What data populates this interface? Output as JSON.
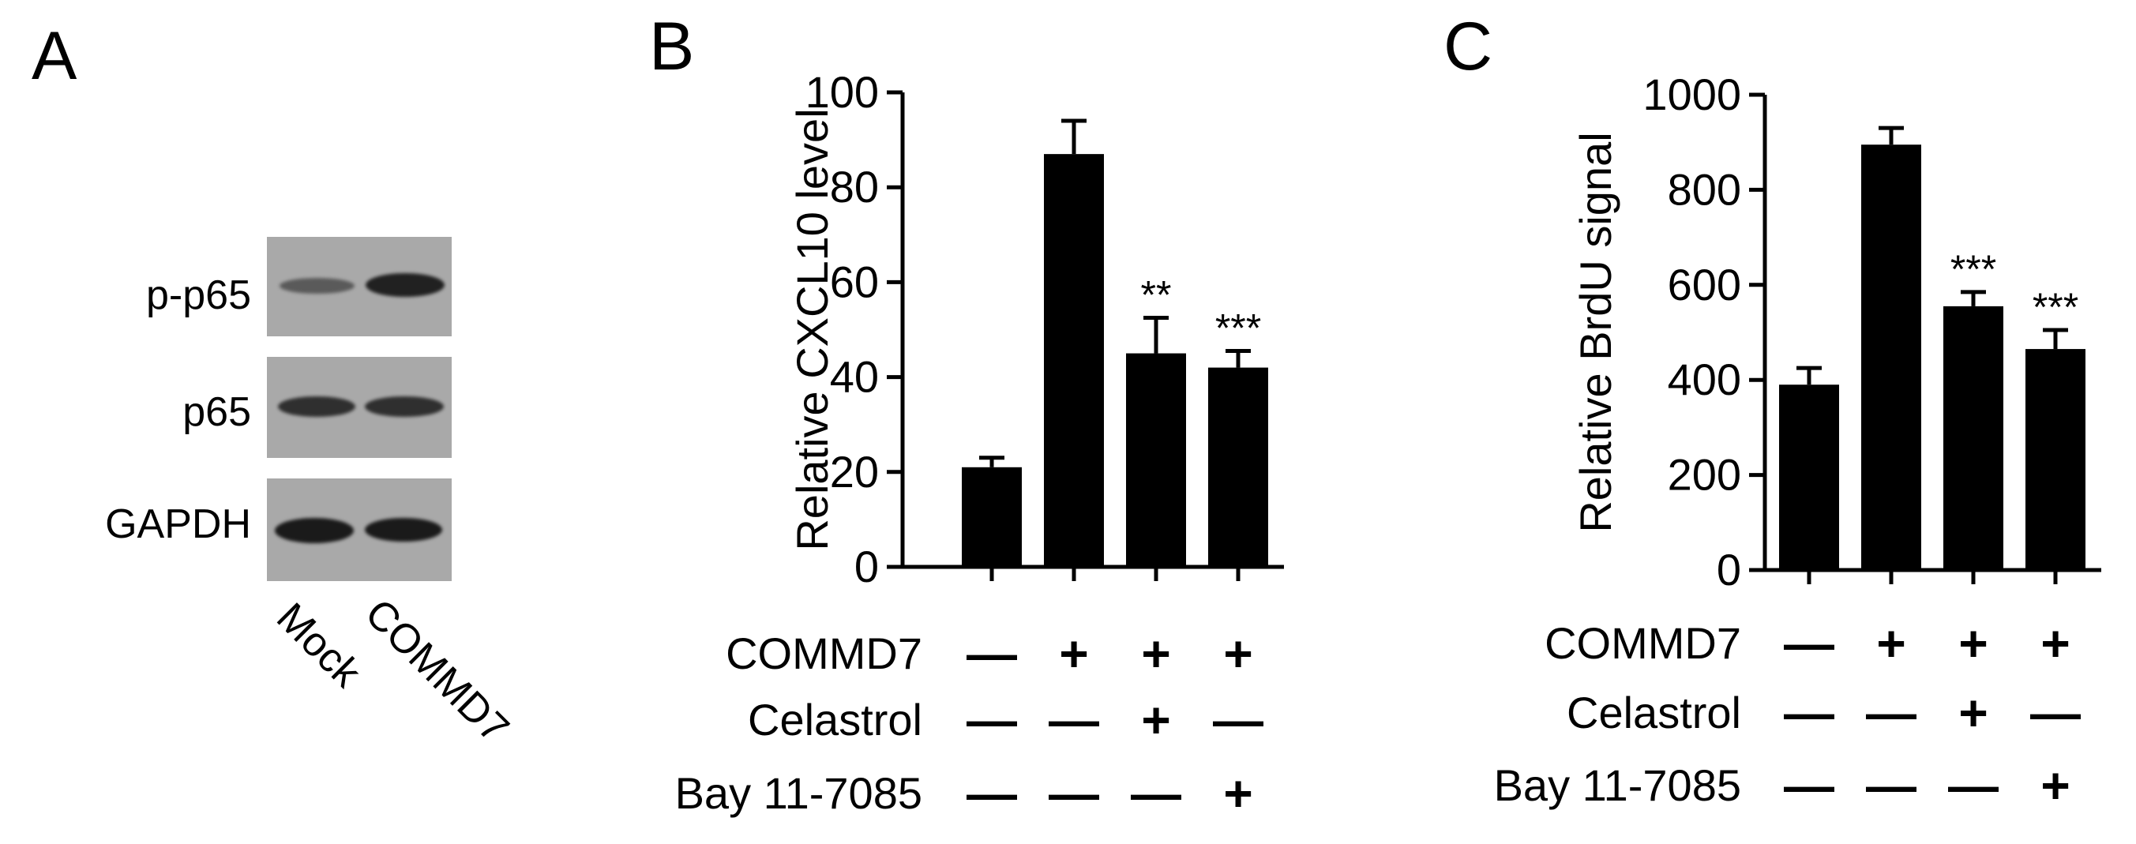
{
  "panel_a": {
    "letter": "A",
    "blot_rows": [
      {
        "label": "p-p65",
        "intensity": [
          0.55,
          0.95
        ]
      },
      {
        "label": "p65",
        "intensity": [
          0.85,
          0.85
        ]
      },
      {
        "label": "GAPDH",
        "intensity": [
          1.0,
          1.0
        ]
      }
    ],
    "lanes": [
      "Mock",
      "COMMD7"
    ]
  },
  "chart_data": [
    {
      "type": "bar",
      "letter": "B",
      "ylabel": "Relative CXCL10 level",
      "ylim": [
        0,
        100
      ],
      "yticks": [
        "0",
        "20",
        "40",
        "60",
        "80",
        "100"
      ],
      "values": [
        21,
        87,
        45,
        42
      ],
      "errors": [
        2,
        7,
        7.5,
        3.5
      ],
      "annotations": [
        "",
        "",
        "**",
        "***"
      ],
      "treatments": [
        {
          "name": "COMMD7",
          "marks": [
            "—",
            "+",
            "+",
            "+"
          ]
        },
        {
          "name": "Celastrol",
          "marks": [
            "—",
            "—",
            "+",
            "—"
          ]
        },
        {
          "name": "Bay 11-7085",
          "marks": [
            "—",
            "—",
            "—",
            "+"
          ]
        }
      ],
      "bar_color": "#000000"
    },
    {
      "type": "bar",
      "letter": "C",
      "ylabel": "Relative BrdU signal",
      "ylim": [
        0,
        1000
      ],
      "yticks": [
        "0",
        "200",
        "400",
        "600",
        "800",
        "1000"
      ],
      "values": [
        390,
        895,
        555,
        465
      ],
      "errors": [
        35,
        35,
        30,
        40
      ],
      "annotations": [
        "",
        "",
        "***",
        "***"
      ],
      "treatments": [
        {
          "name": "COMMD7",
          "marks": [
            "—",
            "+",
            "+",
            "+"
          ]
        },
        {
          "name": "Celastrol",
          "marks": [
            "—",
            "—",
            "+",
            "—"
          ]
        },
        {
          "name": "Bay 11-7085",
          "marks": [
            "—",
            "—",
            "—",
            "+"
          ]
        }
      ],
      "bar_color": "#000000"
    }
  ]
}
